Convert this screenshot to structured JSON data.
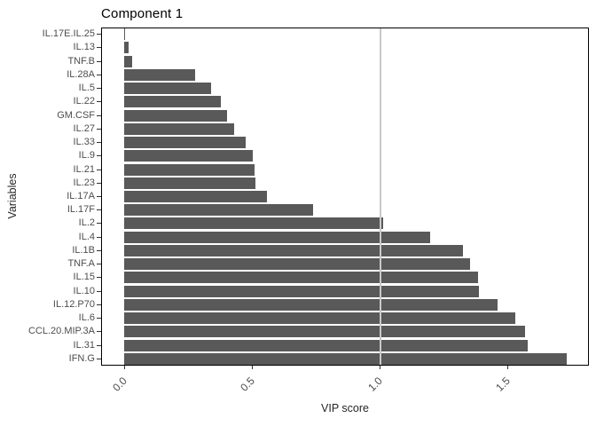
{
  "title": "Component 1",
  "axes": {
    "x_title": "VIP score",
    "y_title": "Variables"
  },
  "chart_data": {
    "type": "bar",
    "orientation": "horizontal",
    "title": "Component 1",
    "xlabel": "VIP score",
    "ylabel": "Variables",
    "xlim": [
      -0.09,
      1.82
    ],
    "x_tick_labels": [
      "0.0",
      "0.5",
      "1.0",
      "1.5"
    ],
    "x_tick_values": [
      0.0,
      0.5,
      1.0,
      1.5
    ],
    "grid": "off",
    "legend": "none",
    "reference_line_x": 1.0,
    "bar_color": "#595959",
    "reference_line_color": "#c9c9c9",
    "categories": [
      "IL.17E.IL.25",
      "IL.13",
      "TNF.B",
      "IL.28A",
      "IL.5",
      "IL.22",
      "GM.CSF",
      "IL.27",
      "IL.33",
      "IL.9",
      "IL.21",
      "IL.23",
      "IL.17A",
      "IL.17F",
      "IL.2",
      "IL.4",
      "IL.1B",
      "TNF.A",
      "IL.15",
      "IL.10",
      "IL.12.P70",
      "IL.6",
      "CCL.20.MIP.3A",
      "IL.31",
      "IFN.G"
    ],
    "values": [
      0.005,
      0.017,
      0.031,
      0.277,
      0.34,
      0.378,
      0.402,
      0.429,
      0.474,
      0.505,
      0.51,
      0.513,
      0.558,
      0.74,
      1.015,
      1.197,
      1.327,
      1.354,
      1.385,
      1.39,
      1.462,
      1.53,
      1.568,
      1.58,
      1.732
    ]
  }
}
